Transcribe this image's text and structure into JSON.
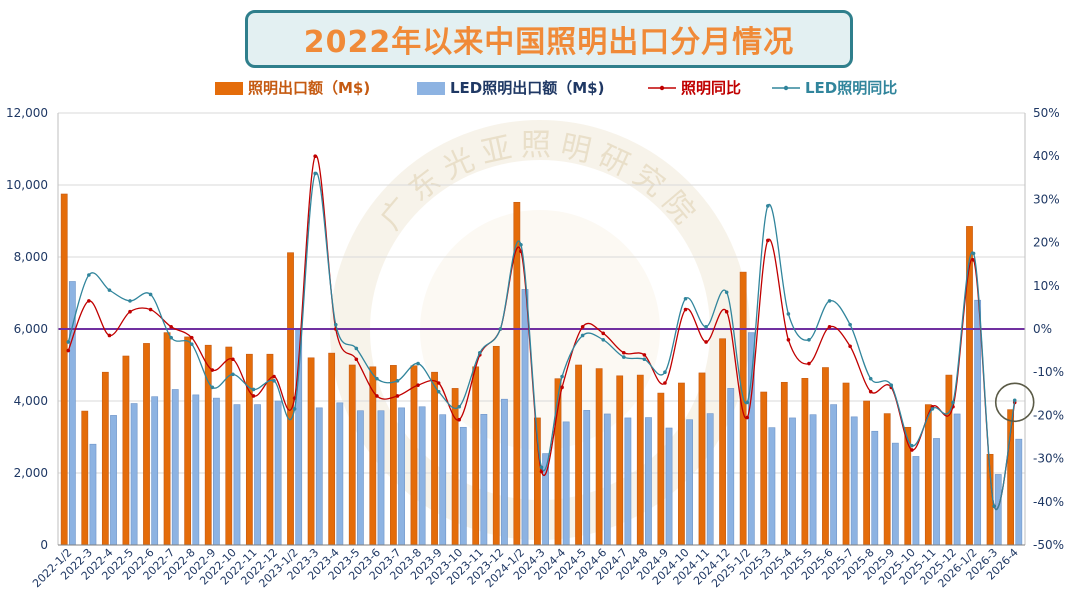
{
  "title": "2022年以来中国照明出口分月情况",
  "watermark": "广东光亚照明研究院",
  "colors": {
    "bar_total": "#e46c0a",
    "bar_led": "#8db3e2",
    "line_total": "#c00000",
    "line_led": "#31859c",
    "zero_line": "#7030a0",
    "axis_text": "#1f3864",
    "title_text": "#f08a38",
    "title_border": "#2f7f8c"
  },
  "chart_data": {
    "type": "bar",
    "title": "2022年以来中国照明出口分月情况",
    "y_left": {
      "min": 0,
      "max": 12000,
      "ticks": [
        "0",
        "2,000",
        "4,000",
        "6,000",
        "8,000",
        "10,000",
        "12,000"
      ]
    },
    "y_right": {
      "min": -50,
      "max": 50,
      "unit": "%",
      "ticks": [
        "-50%",
        "-40%",
        "-30%",
        "-20%",
        "-10%",
        "0%",
        "10%",
        "20%",
        "30%",
        "40%",
        "50%"
      ]
    },
    "grid": "horizontal",
    "legend_position": "top",
    "categories": [
      "2022-1/2",
      "2022-3",
      "2022-4",
      "2022-5",
      "2022-6",
      "2022-7",
      "2022-8",
      "2022-9",
      "2022-10",
      "2022-11",
      "2022-12",
      "2023-1/2",
      "2023-3",
      "2023-4",
      "2023-5",
      "2023-6",
      "2023-7",
      "2023-8",
      "2023-9",
      "2023-10",
      "2023-11",
      "2023-12",
      "2024-1/2",
      "2024-3",
      "2024-4",
      "2024-5",
      "2024-6",
      "2024-7",
      "2024-8",
      "2024-9",
      "2024-10",
      "2024-11",
      "2024-12",
      "2025-1/2",
      "2025-3",
      "2025-4",
      "2025-5",
      "2025-6",
      "2025-7",
      "2025-8",
      "2025-9",
      "2025-10",
      "2025-11",
      "2025-12",
      "2026-1/2",
      "2026-3",
      "2026-4"
    ],
    "series": [
      {
        "name": "照明出口额（M$)",
        "kind": "bar",
        "axis": "left",
        "values": [
          9750,
          3720,
          4800,
          5250,
          5600,
          5900,
          5780,
          5550,
          5500,
          5300,
          5300,
          8120,
          5200,
          5330,
          5000,
          4950,
          4990,
          4980,
          4800,
          4350,
          4950,
          5520,
          9520,
          3530,
          4620,
          5000,
          4900,
          4700,
          4720,
          4220,
          4500,
          4780,
          5730,
          7580,
          4250,
          4520,
          4630,
          4930,
          4500,
          4000,
          3650,
          3270,
          3900,
          4720,
          8850,
          2520,
          3760
        ]
      },
      {
        "name": "LED照明出口额（M$)",
        "kind": "bar",
        "axis": "left",
        "values": [
          7320,
          2800,
          3600,
          3930,
          4120,
          4320,
          4170,
          4080,
          3900,
          3900,
          4000,
          5980,
          3810,
          3950,
          3730,
          3730,
          3810,
          3840,
          3620,
          3270,
          3630,
          4050,
          7100,
          2540,
          3420,
          3740,
          3640,
          3530,
          3540,
          3250,
          3480,
          3650,
          4350,
          5900,
          3260,
          3530,
          3620,
          3900,
          3560,
          3160,
          2830,
          2460,
          2960,
          3640,
          6800,
          1960,
          2940
        ]
      },
      {
        "name": "照明同比",
        "kind": "line",
        "axis": "right",
        "values": [
          -5,
          6.5,
          -1.5,
          4,
          4.5,
          0.5,
          -2,
          -9.5,
          -7,
          -15.5,
          -11,
          -16,
          40,
          0,
          -7,
          -15.5,
          -15.5,
          -13,
          -12.5,
          -21,
          -6,
          0,
          18,
          -33,
          -13.5,
          0.5,
          -1,
          -5.5,
          -6,
          -12.5,
          4.5,
          -3,
          4,
          -20.5,
          20.5,
          -2.5,
          -8,
          0.5,
          -4,
          -14.5,
          -13.5,
          -28,
          -18,
          -18,
          16,
          -41,
          -17
        ]
      },
      {
        "name": "LED照明同比",
        "kind": "line",
        "axis": "right",
        "values": [
          -3,
          12.5,
          9,
          6.5,
          8,
          -2,
          -3.5,
          -13.5,
          -10.5,
          -14,
          -12,
          -18.5,
          36,
          1,
          -4.5,
          -11.5,
          -12,
          -8,
          -14.5,
          -18,
          -5.5,
          0,
          19.5,
          -32,
          -11,
          -1.5,
          -2.5,
          -6.5,
          -7,
          -10,
          7,
          0.5,
          8.5,
          -17,
          28.5,
          3.5,
          -2.5,
          6.5,
          1,
          -11.5,
          -13,
          -27,
          -18.5,
          -17,
          17.5,
          -41,
          -16.5
        ]
      }
    ]
  }
}
